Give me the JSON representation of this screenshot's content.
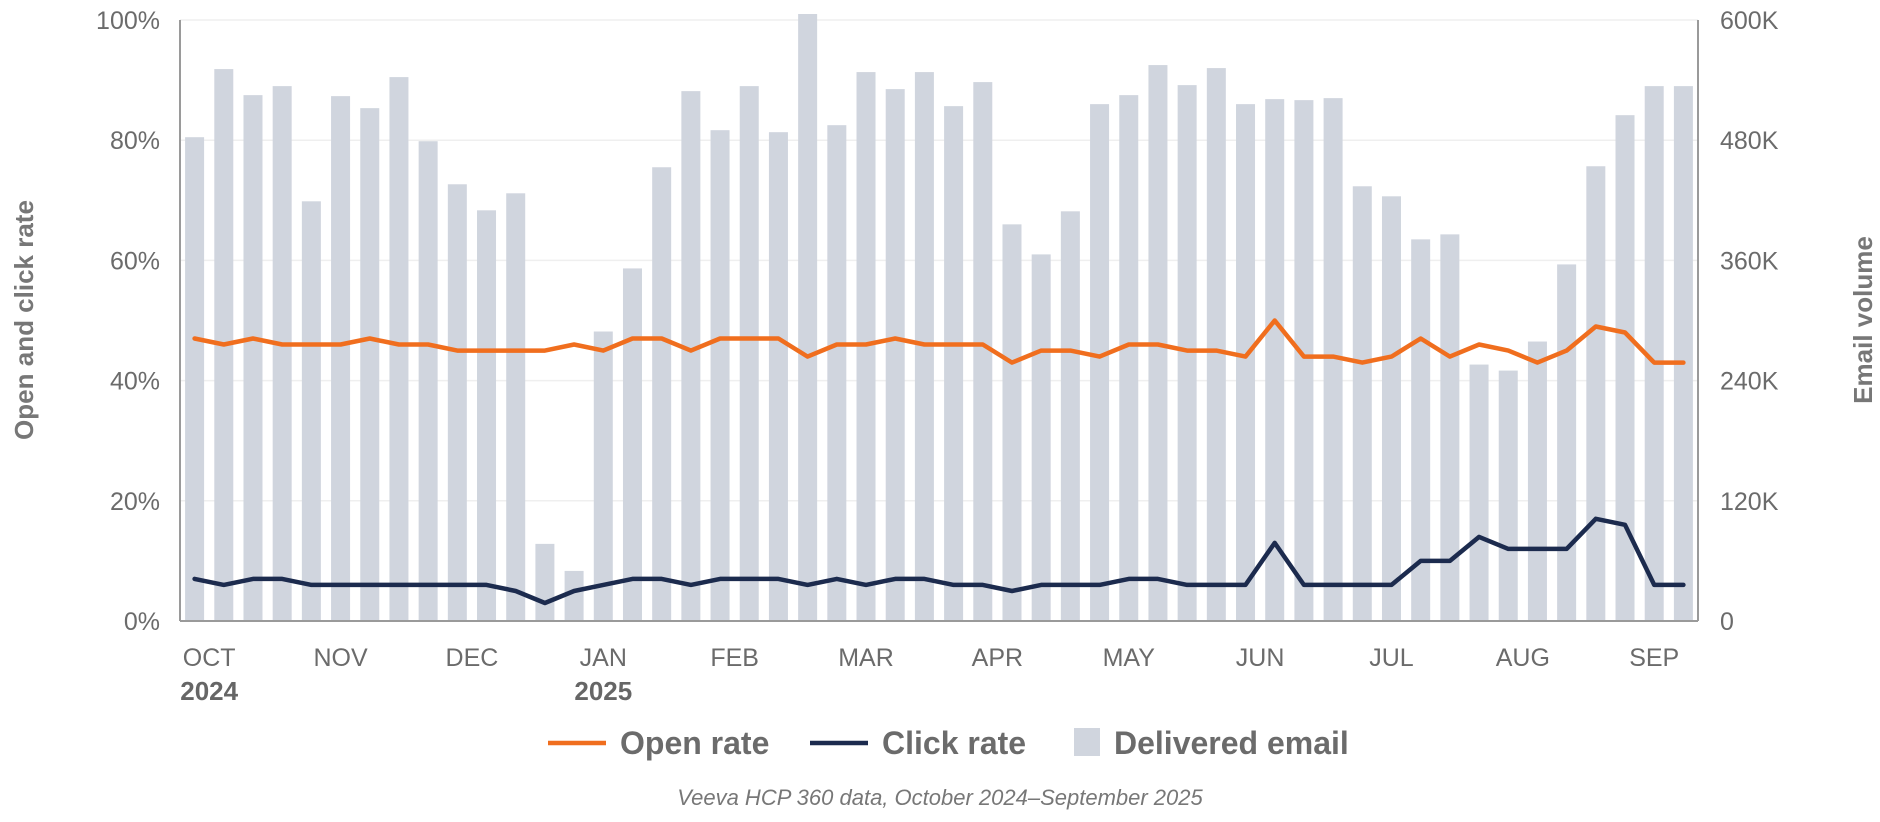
{
  "chart_data": {
    "type": "bar+line",
    "title": "",
    "source": "Veeva HCP 360 data, October 2024–September 2025",
    "y_left": {
      "label": "Open and click rate",
      "range": [
        0,
        100
      ],
      "ticks": [
        "0%",
        "20%",
        "40%",
        "60%",
        "80%",
        "100%"
      ]
    },
    "y_right": {
      "label": "Email volume",
      "range": [
        0,
        600000
      ],
      "ticks": [
        "0",
        "120K",
        "240K",
        "360K",
        "480K",
        "600K"
      ]
    },
    "months": [
      {
        "label": "OCT",
        "year": "2024",
        "week": 1
      },
      {
        "label": "NOV",
        "year": "",
        "week": 5.5
      },
      {
        "label": "DEC",
        "year": "",
        "week": 10
      },
      {
        "label": "JAN",
        "year": "2025",
        "week": 14.5
      },
      {
        "label": "FEB",
        "year": "",
        "week": 19
      },
      {
        "label": "MAR",
        "year": "",
        "week": 23.5
      },
      {
        "label": "APR",
        "year": "",
        "week": 28
      },
      {
        "label": "MAY",
        "year": "",
        "week": 32.5
      },
      {
        "label": "JUN",
        "year": "",
        "week": 37
      },
      {
        "label": "JUL",
        "year": "",
        "week": 41.5
      },
      {
        "label": "AUG",
        "year": "",
        "week": 46
      },
      {
        "label": "SEP",
        "year": "",
        "week": 50.5
      }
    ],
    "series": [
      {
        "name": "Delivered email",
        "type": "bar",
        "color": "#d0d5de",
        "values": [
          483000,
          551000,
          525000,
          534000,
          419000,
          524000,
          512000,
          543000,
          479000,
          436000,
          410000,
          427000,
          77000,
          50000,
          289000,
          352000,
          453000,
          529000,
          490000,
          534000,
          488000,
          608000,
          495000,
          548000,
          531000,
          548000,
          514000,
          538000,
          396000,
          366000,
          409000,
          516000,
          525000,
          555000,
          535000,
          552000,
          516000,
          521000,
          520000,
          522000,
          434000,
          424000,
          381000,
          386000,
          256000,
          250000,
          279000,
          356000,
          454000,
          505000,
          534000,
          534000
        ]
      },
      {
        "name": "Open rate",
        "type": "line",
        "color": "#f06e1e",
        "values": [
          47,
          46,
          47,
          46,
          46,
          46,
          47,
          46,
          46,
          45,
          45,
          45,
          45,
          46,
          45,
          47,
          47,
          45,
          47,
          47,
          47,
          44,
          46,
          46,
          47,
          46,
          46,
          46,
          43,
          45,
          45,
          44,
          46,
          46,
          45,
          45,
          44,
          50,
          44,
          44,
          43,
          44,
          47,
          44,
          46,
          45,
          43,
          45,
          49,
          48,
          43,
          43
        ]
      },
      {
        "name": "Click rate",
        "type": "line",
        "color": "#1c2b4e",
        "values": [
          7,
          6,
          7,
          7,
          6,
          6,
          6,
          6,
          6,
          6,
          6,
          5,
          3,
          5,
          6,
          7,
          7,
          6,
          7,
          7,
          7,
          6,
          7,
          6,
          7,
          7,
          6,
          6,
          5,
          6,
          6,
          6,
          7,
          7,
          6,
          6,
          6,
          13,
          6,
          6,
          6,
          6,
          10,
          10,
          14,
          12,
          12,
          12,
          17,
          16,
          6,
          6
        ]
      }
    ],
    "legend": [
      {
        "label": "Open rate",
        "kind": "line",
        "color": "#f06e1e"
      },
      {
        "label": "Click rate",
        "kind": "line",
        "color": "#1c2b4e"
      },
      {
        "label": "Delivered email",
        "kind": "box",
        "color": "#d0d5de"
      }
    ]
  }
}
